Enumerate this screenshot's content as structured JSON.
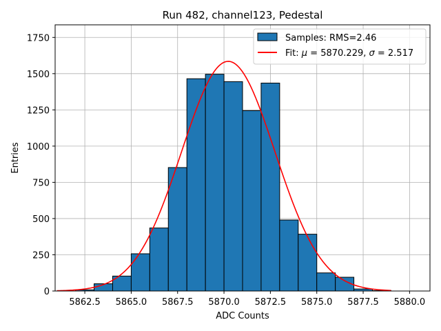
{
  "chart_data": {
    "type": "bar",
    "title": "Run 482, channel123, Pedestal",
    "xlabel": "ADC Counts",
    "ylabel": "Entries",
    "xlim": [
      5860.9,
      5881.1
    ],
    "ylim": [
      0,
      1837
    ],
    "xticks": [
      5862.5,
      5865.0,
      5867.5,
      5870.0,
      5872.5,
      5875.0,
      5877.5,
      5880.0
    ],
    "xtick_labels": [
      "5862.5",
      "5865.0",
      "5867.5",
      "5870.0",
      "5872.5",
      "5875.0",
      "5877.5",
      "5880.0"
    ],
    "yticks": [
      0,
      250,
      500,
      750,
      1000,
      1250,
      1500,
      1750
    ],
    "ytick_labels": [
      "0",
      "250",
      "500",
      "750",
      "1000",
      "1250",
      "1500",
      "1750"
    ],
    "grid": true,
    "legend_position": "top-right",
    "histogram": {
      "name": "Samples: RMS=2.46",
      "color": "#1f77b4",
      "edge_color": "#000000",
      "bins": [
        {
          "x0": 5862.0,
          "x1": 5863.0,
          "value": 8
        },
        {
          "x0": 5863.0,
          "x1": 5864.0,
          "value": 50
        },
        {
          "x0": 5864.0,
          "x1": 5865.0,
          "value": 103
        },
        {
          "x0": 5865.0,
          "x1": 5866.0,
          "value": 257
        },
        {
          "x0": 5866.0,
          "x1": 5867.0,
          "value": 435
        },
        {
          "x0": 5867.0,
          "x1": 5868.0,
          "value": 852
        },
        {
          "x0": 5868.0,
          "x1": 5869.0,
          "value": 1465
        },
        {
          "x0": 5869.0,
          "x1": 5870.0,
          "value": 1496
        },
        {
          "x0": 5870.0,
          "x1": 5871.0,
          "value": 1445
        },
        {
          "x0": 5871.0,
          "x1": 5872.0,
          "value": 1245
        },
        {
          "x0": 5872.0,
          "x1": 5873.0,
          "value": 1435
        },
        {
          "x0": 5873.0,
          "x1": 5874.0,
          "value": 490
        },
        {
          "x0": 5874.0,
          "x1": 5875.0,
          "value": 392
        },
        {
          "x0": 5875.0,
          "x1": 5876.0,
          "value": 125
        },
        {
          "x0": 5876.0,
          "x1": 5877.0,
          "value": 95
        },
        {
          "x0": 5877.0,
          "x1": 5878.0,
          "value": 14
        },
        {
          "x0": 5878.0,
          "x1": 5879.0,
          "value": 3
        }
      ]
    },
    "fit": {
      "name": "Fit: μ = 5870.229, σ = 2.517",
      "legend_prefix": "Fit: ",
      "mu_symbol": "μ",
      "mu_text": " = 5870.229, ",
      "sigma_symbol": "σ",
      "sigma_text": " = 2.517",
      "color": "#ff0000",
      "type": "gaussian",
      "mu": 5870.229,
      "sigma": 2.517,
      "amplitude": 1585,
      "x_range": [
        5861.0,
        5879.0
      ]
    }
  }
}
